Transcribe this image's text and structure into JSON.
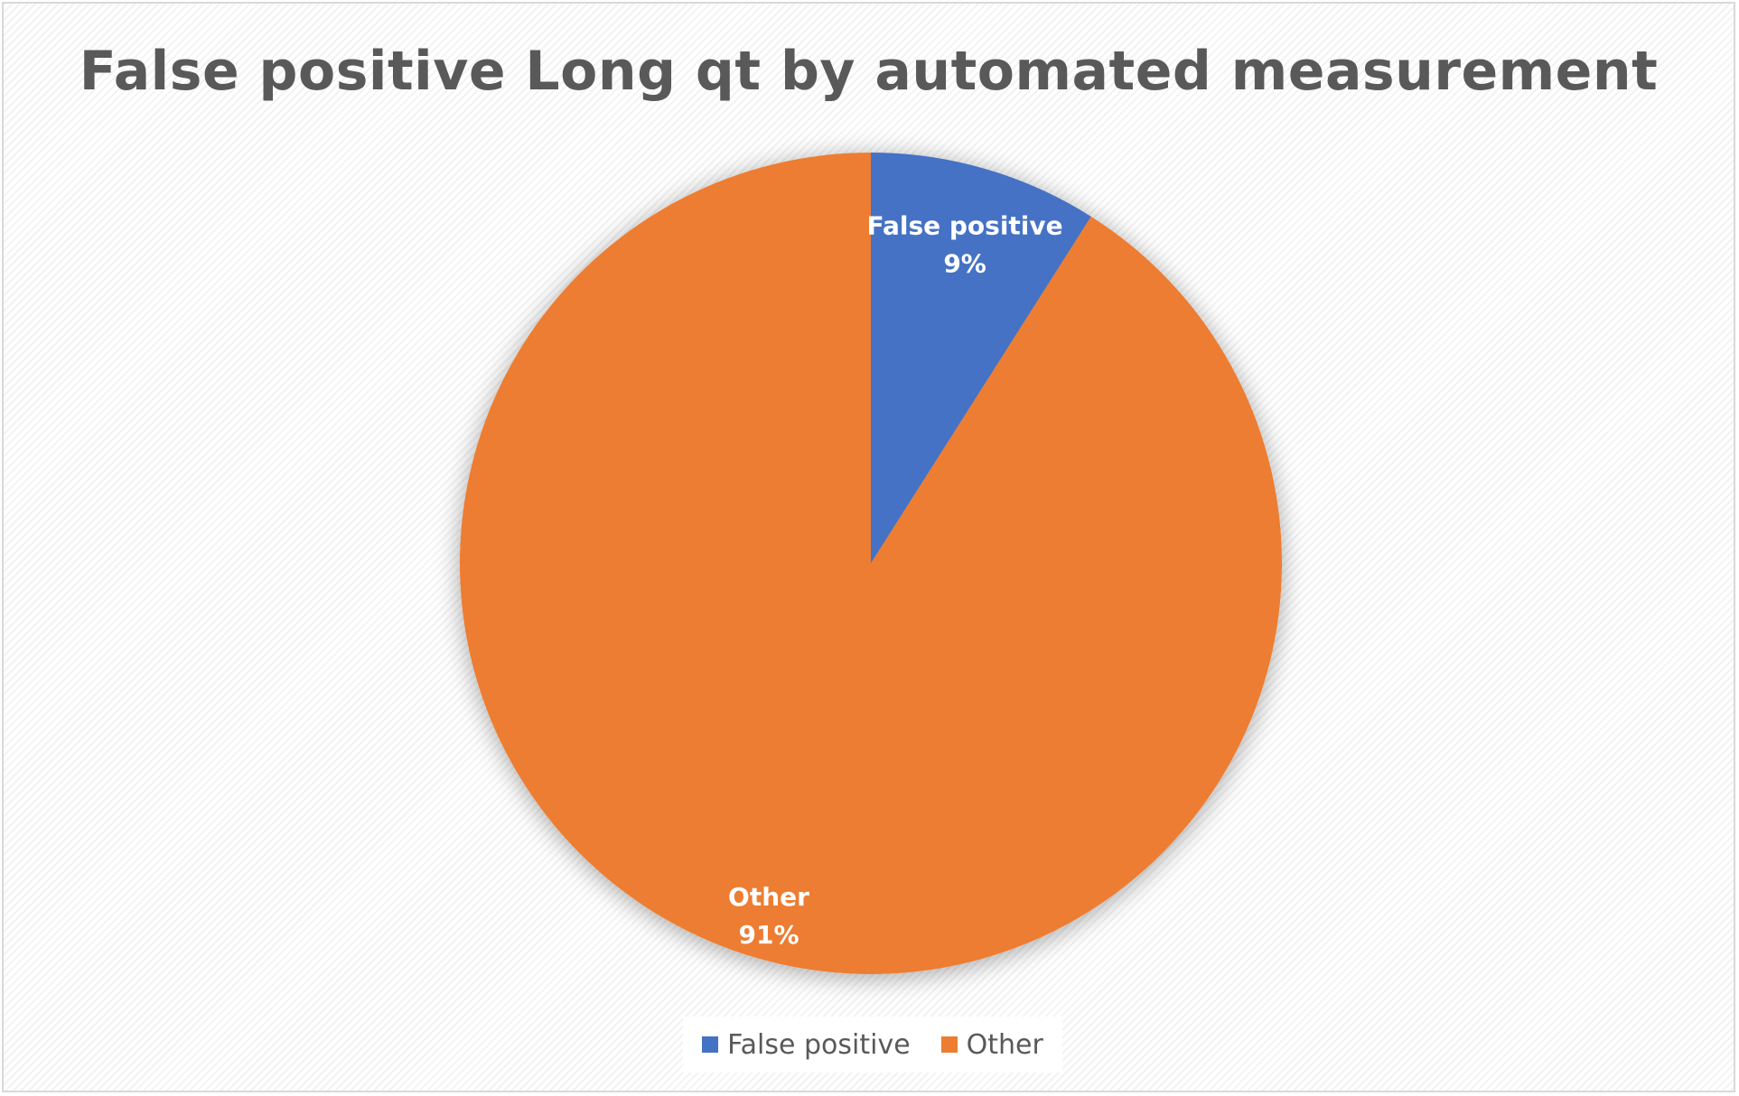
{
  "chart_data": {
    "type": "pie",
    "title": "False positive Long qt by automated measurement",
    "categories": [
      "False positive",
      "Other"
    ],
    "values": [
      9,
      91
    ],
    "data_labels": [
      {
        "category": "False positive",
        "percent": "9%"
      },
      {
        "category": "Other",
        "percent": "91%"
      }
    ],
    "colors": [
      "#4472C4",
      "#ED7D31"
    ],
    "legend": {
      "position": "bottom",
      "entries": [
        "False positive",
        "Other"
      ]
    },
    "label_color": "#FFFFFF",
    "title_color": "#595959"
  }
}
